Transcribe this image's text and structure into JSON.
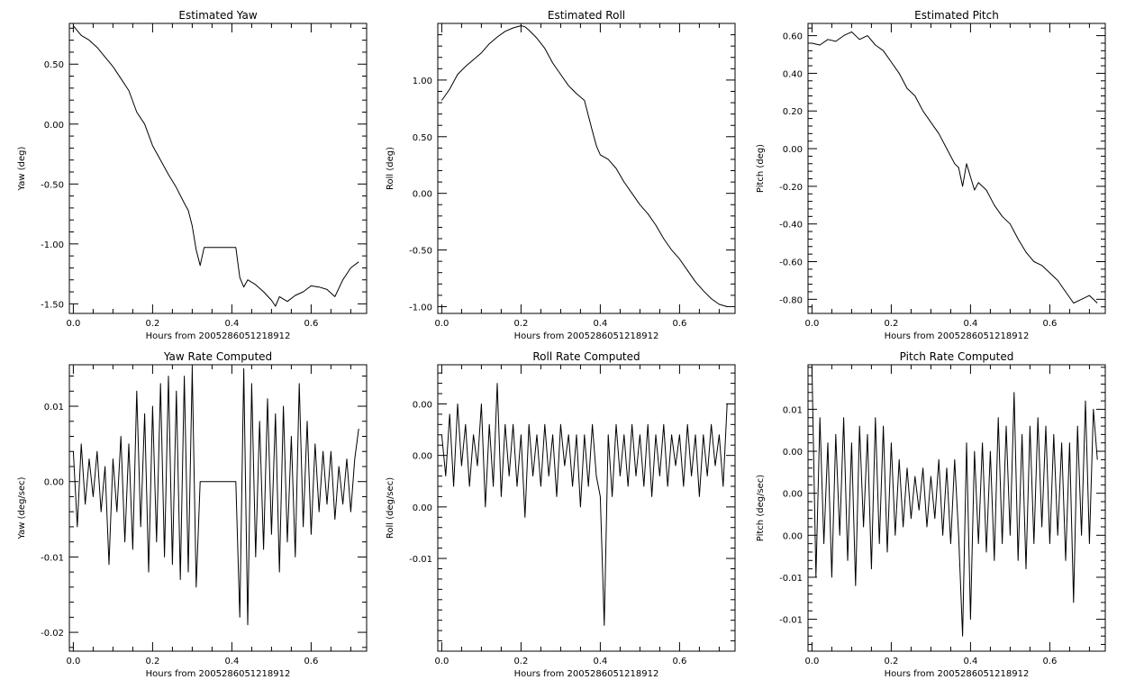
{
  "chart_data": [
    {
      "type": "line",
      "title": "Estimated Yaw",
      "xlabel": "Hours from 2005286051218912",
      "ylabel": "Yaw (deg)",
      "xlim": [
        -0.01,
        0.74
      ],
      "ylim": [
        -1.58,
        0.84
      ],
      "xticks": [
        0.0,
        0.2,
        0.4,
        0.6
      ],
      "xtick_labels": [
        "0.0",
        "0.2",
        "0.4",
        "0.6"
      ],
      "yticks": [
        0.5,
        0.0,
        -0.5,
        -1.0,
        -1.5
      ],
      "ytick_labels": [
        "0.50",
        "0.00",
        "-0.50",
        "-1.00",
        "-1.50"
      ],
      "x": [
        0.0,
        0.02,
        0.04,
        0.06,
        0.08,
        0.1,
        0.12,
        0.14,
        0.16,
        0.18,
        0.2,
        0.22,
        0.24,
        0.26,
        0.28,
        0.29,
        0.3,
        0.31,
        0.32,
        0.33,
        0.35,
        0.38,
        0.41,
        0.42,
        0.43,
        0.44,
        0.46,
        0.48,
        0.5,
        0.51,
        0.52,
        0.54,
        0.56,
        0.58,
        0.6,
        0.62,
        0.64,
        0.66,
        0.68,
        0.7,
        0.72
      ],
      "y": [
        0.82,
        0.74,
        0.7,
        0.64,
        0.56,
        0.48,
        0.38,
        0.28,
        0.1,
        0.0,
        -0.18,
        -0.3,
        -0.42,
        -0.53,
        -0.66,
        -0.72,
        -0.85,
        -1.05,
        -1.18,
        -1.03,
        -1.03,
        -1.03,
        -1.03,
        -1.28,
        -1.36,
        -1.3,
        -1.34,
        -1.4,
        -1.47,
        -1.52,
        -1.44,
        -1.48,
        -1.43,
        -1.4,
        -1.35,
        -1.36,
        -1.38,
        -1.44,
        -1.3,
        -1.2,
        -1.15
      ]
    },
    {
      "type": "line",
      "title": "Estimated Roll",
      "xlabel": "Hours from 2005286051218912",
      "ylabel": "Roll (deg)",
      "xlim": [
        -0.01,
        0.74
      ],
      "ylim": [
        -1.06,
        1.5
      ],
      "xticks": [
        0.0,
        0.2,
        0.4,
        0.6
      ],
      "xtick_labels": [
        "0.0",
        "0.2",
        "0.4",
        "0.6"
      ],
      "yticks": [
        1.0,
        0.5,
        0.0,
        -0.5,
        -1.0
      ],
      "ytick_labels": [
        "1.00",
        "0.50",
        "0.00",
        "-0.50",
        "-1.00"
      ],
      "x": [
        0.0,
        0.02,
        0.04,
        0.06,
        0.08,
        0.1,
        0.12,
        0.14,
        0.16,
        0.18,
        0.2,
        0.21,
        0.22,
        0.24,
        0.26,
        0.28,
        0.3,
        0.32,
        0.34,
        0.36,
        0.38,
        0.39,
        0.4,
        0.42,
        0.44,
        0.46,
        0.48,
        0.5,
        0.52,
        0.54,
        0.56,
        0.58,
        0.6,
        0.62,
        0.64,
        0.66,
        0.68,
        0.7,
        0.72
      ],
      "y": [
        0.82,
        0.92,
        1.05,
        1.12,
        1.18,
        1.24,
        1.32,
        1.38,
        1.43,
        1.46,
        1.48,
        1.47,
        1.44,
        1.37,
        1.28,
        1.15,
        1.05,
        0.95,
        0.88,
        0.82,
        0.55,
        0.42,
        0.34,
        0.3,
        0.22,
        0.1,
        0.0,
        -0.1,
        -0.18,
        -0.28,
        -0.4,
        -0.5,
        -0.58,
        -0.68,
        -0.78,
        -0.86,
        -0.93,
        -0.98,
        -1.0
      ]
    },
    {
      "type": "line",
      "title": "Estimated Pitch",
      "xlabel": "Hours from 2005286051218912",
      "ylabel": "Pitch (deg)",
      "xlim": [
        -0.01,
        0.74
      ],
      "ylim": [
        -0.875,
        0.665
      ],
      "xticks": [
        0.0,
        0.2,
        0.4,
        0.6
      ],
      "xtick_labels": [
        "0.0",
        "0.2",
        "0.4",
        "0.6"
      ],
      "yticks": [
        0.6,
        0.4,
        0.2,
        0.0,
        -0.2,
        -0.4,
        -0.6,
        -0.8
      ],
      "ytick_labels": [
        "0.60",
        "0.40",
        "0.20",
        "0.00",
        "-0.20",
        "-0.40",
        "-0.60",
        "-0.80"
      ],
      "x": [
        0.0,
        0.02,
        0.04,
        0.06,
        0.08,
        0.1,
        0.12,
        0.14,
        0.16,
        0.18,
        0.2,
        0.22,
        0.24,
        0.26,
        0.28,
        0.3,
        0.32,
        0.34,
        0.36,
        0.37,
        0.38,
        0.39,
        0.4,
        0.41,
        0.42,
        0.44,
        0.46,
        0.48,
        0.5,
        0.52,
        0.54,
        0.56,
        0.58,
        0.6,
        0.62,
        0.64,
        0.66,
        0.68,
        0.7,
        0.72
      ],
      "y": [
        0.56,
        0.55,
        0.58,
        0.57,
        0.6,
        0.62,
        0.58,
        0.6,
        0.55,
        0.52,
        0.46,
        0.4,
        0.32,
        0.28,
        0.2,
        0.14,
        0.08,
        0.0,
        -0.08,
        -0.1,
        -0.2,
        -0.08,
        -0.15,
        -0.22,
        -0.18,
        -0.22,
        -0.3,
        -0.36,
        -0.4,
        -0.48,
        -0.55,
        -0.6,
        -0.62,
        -0.66,
        -0.7,
        -0.76,
        -0.82,
        -0.8,
        -0.78,
        -0.82
      ]
    },
    {
      "type": "line",
      "title": "Yaw Rate Computed",
      "xlabel": "Hours from 2005286051218912",
      "ylabel": "Yaw (deg/sec)",
      "xlim": [
        -0.01,
        0.74
      ],
      "ylim": [
        -0.0225,
        0.0155
      ],
      "xticks": [
        0.0,
        0.2,
        0.4,
        0.6
      ],
      "xtick_labels": [
        "0.0",
        "0.2",
        "0.4",
        "0.6"
      ],
      "yticks": [
        0.01,
        0.0,
        -0.01,
        -0.02
      ],
      "ytick_labels": [
        "0.01",
        "0.00",
        "-0.01",
        "-0.02"
      ],
      "x": [
        0.0,
        0.01,
        0.02,
        0.03,
        0.04,
        0.05,
        0.06,
        0.07,
        0.08,
        0.09,
        0.1,
        0.11,
        0.12,
        0.13,
        0.14,
        0.15,
        0.16,
        0.17,
        0.18,
        0.19,
        0.2,
        0.21,
        0.22,
        0.23,
        0.24,
        0.25,
        0.26,
        0.27,
        0.28,
        0.29,
        0.3,
        0.31,
        0.32,
        0.36,
        0.41,
        0.42,
        0.43,
        0.44,
        0.45,
        0.46,
        0.47,
        0.48,
        0.49,
        0.5,
        0.51,
        0.52,
        0.53,
        0.54,
        0.55,
        0.56,
        0.57,
        0.58,
        0.59,
        0.6,
        0.61,
        0.62,
        0.63,
        0.64,
        0.65,
        0.66,
        0.67,
        0.68,
        0.69,
        0.7,
        0.71,
        0.72
      ],
      "y": [
        0.004,
        -0.006,
        0.005,
        -0.003,
        0.003,
        -0.002,
        0.004,
        -0.004,
        0.002,
        -0.011,
        0.003,
        -0.004,
        0.006,
        -0.008,
        0.005,
        -0.009,
        0.012,
        -0.006,
        0.009,
        -0.012,
        0.01,
        -0.008,
        0.013,
        -0.01,
        0.014,
        -0.011,
        0.012,
        -0.013,
        0.014,
        -0.012,
        0.015,
        -0.014,
        0.0,
        0.0,
        0.0,
        -0.018,
        0.015,
        -0.019,
        0.013,
        -0.01,
        0.008,
        -0.009,
        0.011,
        -0.007,
        0.009,
        -0.012,
        0.01,
        -0.008,
        0.006,
        -0.01,
        0.013,
        -0.006,
        0.008,
        -0.007,
        0.005,
        -0.004,
        0.004,
        -0.003,
        0.004,
        -0.005,
        0.002,
        -0.003,
        0.003,
        -0.004,
        0.003,
        0.007
      ]
    },
    {
      "type": "line",
      "title": "Roll Rate Computed",
      "xlabel": "Hours from 2005286051218912",
      "ylabel": "Roll (deg/sec)",
      "xlim": [
        -0.01,
        0.74
      ],
      "ylim": [
        -0.019,
        0.0088
      ],
      "xticks": [
        0.0,
        0.2,
        0.4,
        0.6
      ],
      "xtick_labels": [
        "0.0",
        "0.2",
        "0.4",
        "0.6"
      ],
      "yticks": [
        0.005,
        0.0,
        -0.005,
        -0.01
      ],
      "ytick_labels": [
        "0.00",
        "0.00",
        "0.00",
        "-0.01"
      ],
      "x": [
        0.0,
        0.01,
        0.02,
        0.03,
        0.04,
        0.05,
        0.06,
        0.07,
        0.08,
        0.09,
        0.1,
        0.11,
        0.12,
        0.13,
        0.14,
        0.15,
        0.16,
        0.17,
        0.18,
        0.19,
        0.2,
        0.21,
        0.22,
        0.23,
        0.24,
        0.25,
        0.26,
        0.27,
        0.28,
        0.29,
        0.3,
        0.31,
        0.32,
        0.33,
        0.34,
        0.35,
        0.36,
        0.37,
        0.38,
        0.39,
        0.4,
        0.41,
        0.42,
        0.43,
        0.44,
        0.45,
        0.46,
        0.47,
        0.48,
        0.49,
        0.5,
        0.51,
        0.52,
        0.53,
        0.54,
        0.55,
        0.56,
        0.57,
        0.58,
        0.59,
        0.6,
        0.61,
        0.62,
        0.63,
        0.64,
        0.65,
        0.66,
        0.67,
        0.68,
        0.69,
        0.7,
        0.71,
        0.72
      ],
      "y": [
        0.002,
        -0.002,
        0.004,
        -0.003,
        0.005,
        -0.001,
        0.003,
        -0.003,
        0.002,
        -0.001,
        0.005,
        -0.005,
        0.003,
        -0.003,
        0.007,
        -0.004,
        0.003,
        -0.002,
        0.003,
        -0.003,
        0.002,
        -0.006,
        0.003,
        -0.002,
        0.002,
        -0.003,
        0.003,
        -0.002,
        0.002,
        -0.004,
        0.003,
        -0.001,
        0.002,
        -0.003,
        0.002,
        -0.005,
        0.002,
        -0.003,
        0.003,
        -0.002,
        -0.004,
        -0.0165,
        0.002,
        -0.004,
        0.003,
        -0.002,
        0.002,
        -0.003,
        0.003,
        -0.002,
        0.002,
        -0.003,
        0.003,
        -0.004,
        0.002,
        -0.002,
        0.003,
        -0.003,
        0.002,
        -0.001,
        0.002,
        -0.003,
        0.003,
        -0.002,
        0.002,
        -0.004,
        0.002,
        -0.002,
        0.003,
        -0.001,
        0.002,
        -0.003,
        0.005
      ]
    },
    {
      "type": "line",
      "title": "Pitch Rate Computed",
      "xlabel": "Hours from 2005286051218912",
      "ylabel": "Pitch (deg/sec)",
      "xlim": [
        -0.01,
        0.74
      ],
      "ylim": [
        -0.0188,
        0.0153
      ],
      "xticks": [
        0.0,
        0.2,
        0.4,
        0.6
      ],
      "xtick_labels": [
        "0.0",
        "0.2",
        "0.4",
        "0.6"
      ],
      "yticks": [
        0.01,
        0.005,
        0.0,
        -0.005,
        -0.01,
        -0.015
      ],
      "ytick_labels": [
        "0.01",
        "0.00",
        "0.00",
        "0.00",
        "-0.01",
        "-0.01"
      ],
      "x": [
        0.0,
        0.01,
        0.02,
        0.03,
        0.04,
        0.05,
        0.06,
        0.07,
        0.08,
        0.09,
        0.1,
        0.11,
        0.12,
        0.13,
        0.14,
        0.15,
        0.16,
        0.17,
        0.18,
        0.19,
        0.2,
        0.21,
        0.22,
        0.23,
        0.24,
        0.25,
        0.26,
        0.27,
        0.28,
        0.29,
        0.3,
        0.31,
        0.32,
        0.33,
        0.34,
        0.35,
        0.36,
        0.37,
        0.38,
        0.39,
        0.4,
        0.41,
        0.42,
        0.43,
        0.44,
        0.45,
        0.46,
        0.47,
        0.48,
        0.49,
        0.5,
        0.51,
        0.52,
        0.53,
        0.54,
        0.55,
        0.56,
        0.57,
        0.58,
        0.59,
        0.6,
        0.61,
        0.62,
        0.63,
        0.64,
        0.65,
        0.66,
        0.67,
        0.68,
        0.69,
        0.7,
        0.71,
        0.72
      ],
      "y": [
        0.015,
        -0.01,
        0.009,
        -0.006,
        0.006,
        -0.01,
        0.007,
        -0.005,
        0.009,
        -0.008,
        0.006,
        -0.011,
        0.008,
        -0.004,
        0.007,
        -0.009,
        0.009,
        -0.006,
        0.008,
        -0.007,
        0.006,
        -0.005,
        0.004,
        -0.004,
        0.003,
        -0.003,
        0.002,
        -0.002,
        0.003,
        -0.004,
        0.002,
        -0.003,
        0.004,
        -0.005,
        0.003,
        -0.006,
        0.004,
        -0.005,
        -0.017,
        0.006,
        -0.015,
        0.005,
        -0.006,
        0.006,
        -0.007,
        0.005,
        -0.008,
        0.009,
        -0.006,
        0.008,
        -0.005,
        0.012,
        -0.008,
        0.007,
        -0.009,
        0.008,
        -0.006,
        0.009,
        -0.004,
        0.008,
        -0.006,
        0.007,
        -0.005,
        0.006,
        -0.008,
        0.006,
        -0.013,
        0.008,
        -0.005,
        0.011,
        -0.006,
        0.01,
        0.004
      ]
    }
  ]
}
